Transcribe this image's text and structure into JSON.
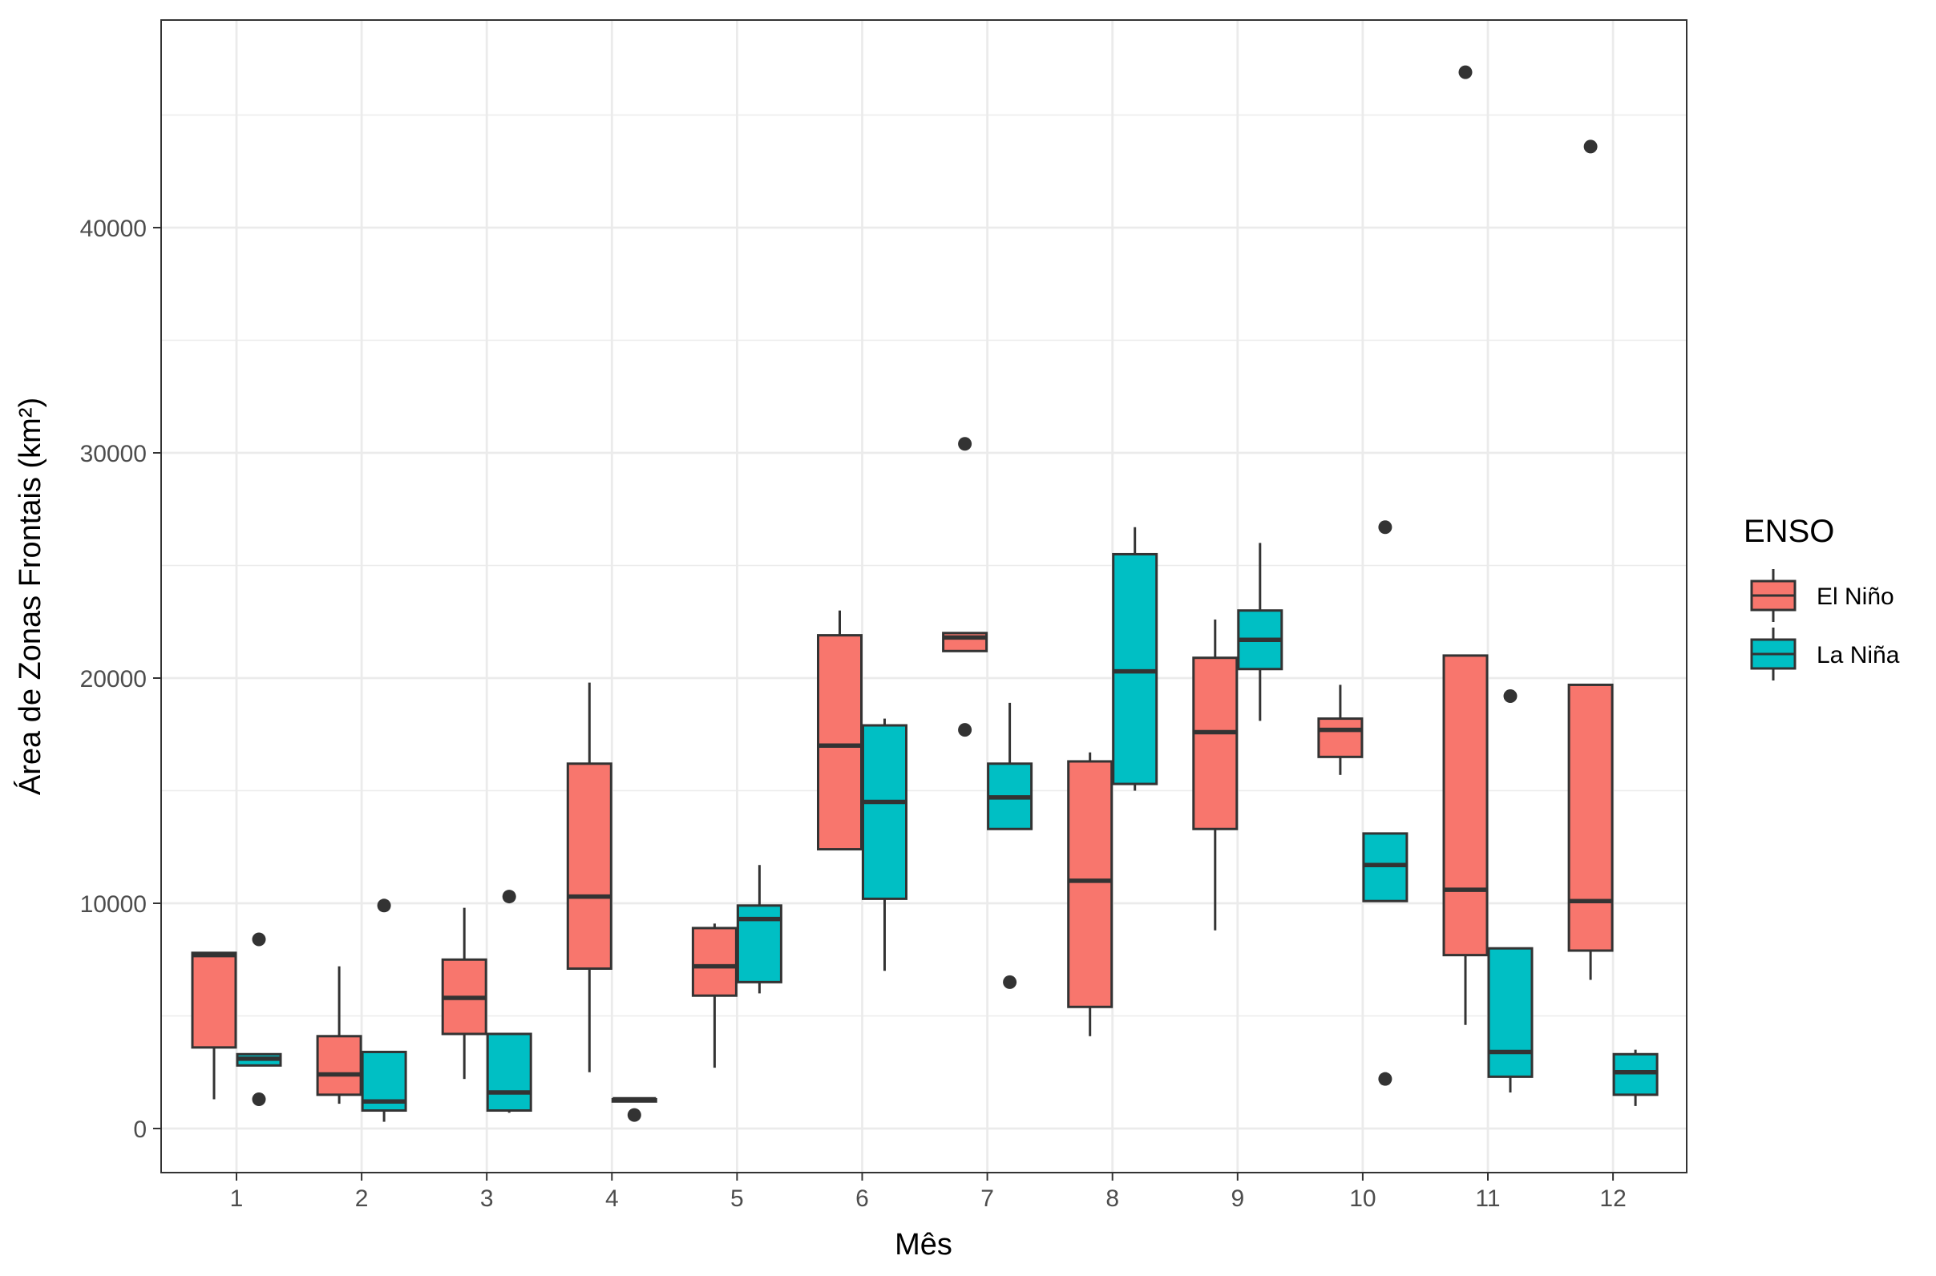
{
  "chart_data": {
    "type": "boxplot",
    "xlabel": "Mês",
    "ylabel": "Área de Zonas Frontais (km²)",
    "categories": [
      "1",
      "2",
      "3",
      "4",
      "5",
      "6",
      "7",
      "8",
      "9",
      "10",
      "11",
      "12"
    ],
    "ylim": [
      -1800,
      49400
    ],
    "yticks": [
      0,
      10000,
      20000,
      30000,
      40000
    ],
    "grid": true,
    "legend": {
      "title": "ENSO",
      "position": "right",
      "entries": [
        {
          "name": "El Niño",
          "color": "#F8766D"
        },
        {
          "name": "La Niña",
          "color": "#00BFC4"
        }
      ]
    },
    "series": [
      {
        "name": "El Niño",
        "color": "#F8766D",
        "boxes": [
          {
            "month": 1,
            "whisker_low": 1300,
            "q1": 3600,
            "median": 7700,
            "q3": 7800,
            "whisker_high": 7800,
            "outliers": []
          },
          {
            "month": 2,
            "whisker_low": 1100,
            "q1": 1500,
            "median": 2400,
            "q3": 4100,
            "whisker_high": 7200,
            "outliers": []
          },
          {
            "month": 3,
            "whisker_low": 2200,
            "q1": 4200,
            "median": 5800,
            "q3": 7500,
            "whisker_high": 9800,
            "outliers": []
          },
          {
            "month": 4,
            "whisker_low": 2500,
            "q1": 7100,
            "median": 10300,
            "q3": 16200,
            "whisker_high": 19800,
            "outliers": []
          },
          {
            "month": 5,
            "whisker_low": 2700,
            "q1": 5900,
            "median": 7200,
            "q3": 8900,
            "whisker_high": 9100,
            "outliers": []
          },
          {
            "month": 6,
            "whisker_low": 12400,
            "q1": 12400,
            "median": 17000,
            "q3": 21900,
            "whisker_high": 23000,
            "outliers": []
          },
          {
            "month": 7,
            "whisker_low": 21200,
            "q1": 21200,
            "median": 21800,
            "q3": 22000,
            "whisker_high": 22000,
            "outliers": [
              30400,
              17700
            ]
          },
          {
            "month": 8,
            "whisker_low": 4100,
            "q1": 5400,
            "median": 11000,
            "q3": 16300,
            "whisker_high": 16700,
            "outliers": []
          },
          {
            "month": 9,
            "whisker_low": 8800,
            "q1": 13300,
            "median": 17600,
            "q3": 20900,
            "whisker_high": 22600,
            "outliers": []
          },
          {
            "month": 10,
            "whisker_low": 15700,
            "q1": 16500,
            "median": 17700,
            "q3": 18200,
            "whisker_high": 19700,
            "outliers": []
          },
          {
            "month": 11,
            "whisker_low": 4600,
            "q1": 7700,
            "median": 10600,
            "q3": 21000,
            "whisker_high": 21000,
            "outliers": [
              46900
            ]
          },
          {
            "month": 12,
            "whisker_low": 6600,
            "q1": 7900,
            "median": 10100,
            "q3": 19700,
            "whisker_high": 19700,
            "outliers": [
              43600
            ]
          }
        ]
      },
      {
        "name": "La Niña",
        "color": "#00BFC4",
        "boxes": [
          {
            "month": 1,
            "whisker_low": 2800,
            "q1": 2800,
            "median": 3100,
            "q3": 3300,
            "whisker_high": 3300,
            "outliers": [
              8400,
              1300
            ]
          },
          {
            "month": 2,
            "whisker_low": 300,
            "q1": 800,
            "median": 1200,
            "q3": 3400,
            "whisker_high": 3400,
            "outliers": [
              9900
            ]
          },
          {
            "month": 3,
            "whisker_low": 700,
            "q1": 800,
            "median": 1600,
            "q3": 4200,
            "whisker_high": 4200,
            "outliers": [
              10300
            ]
          },
          {
            "month": 4,
            "whisker_low": 1200,
            "q1": 1200,
            "median": 1300,
            "q3": 1300,
            "whisker_high": 1300,
            "outliers": [
              600
            ]
          },
          {
            "month": 5,
            "whisker_low": 6000,
            "q1": 6500,
            "median": 9300,
            "q3": 9900,
            "whisker_high": 11700,
            "outliers": []
          },
          {
            "month": 6,
            "whisker_low": 7000,
            "q1": 10200,
            "median": 14500,
            "q3": 17900,
            "whisker_high": 18200,
            "outliers": []
          },
          {
            "month": 7,
            "whisker_low": 13300,
            "q1": 13300,
            "median": 14700,
            "q3": 16200,
            "whisker_high": 18900,
            "outliers": [
              6500
            ]
          },
          {
            "month": 8,
            "whisker_low": 15000,
            "q1": 15300,
            "median": 20300,
            "q3": 25500,
            "whisker_high": 26700,
            "outliers": []
          },
          {
            "month": 9,
            "whisker_low": 18100,
            "q1": 20400,
            "median": 21700,
            "q3": 23000,
            "whisker_high": 26000,
            "outliers": []
          },
          {
            "month": 10,
            "whisker_low": 10100,
            "q1": 10100,
            "median": 11700,
            "q3": 13100,
            "whisker_high": 13100,
            "outliers": [
              26700,
              2200
            ]
          },
          {
            "month": 11,
            "whisker_low": 1600,
            "q1": 2300,
            "median": 3400,
            "q3": 8000,
            "whisker_high": 8000,
            "outliers": [
              19200
            ]
          },
          {
            "month": 12,
            "whisker_low": 1000,
            "q1": 1500,
            "median": 2500,
            "q3": 3300,
            "whisker_high": 3500,
            "outliers": []
          }
        ]
      }
    ]
  }
}
